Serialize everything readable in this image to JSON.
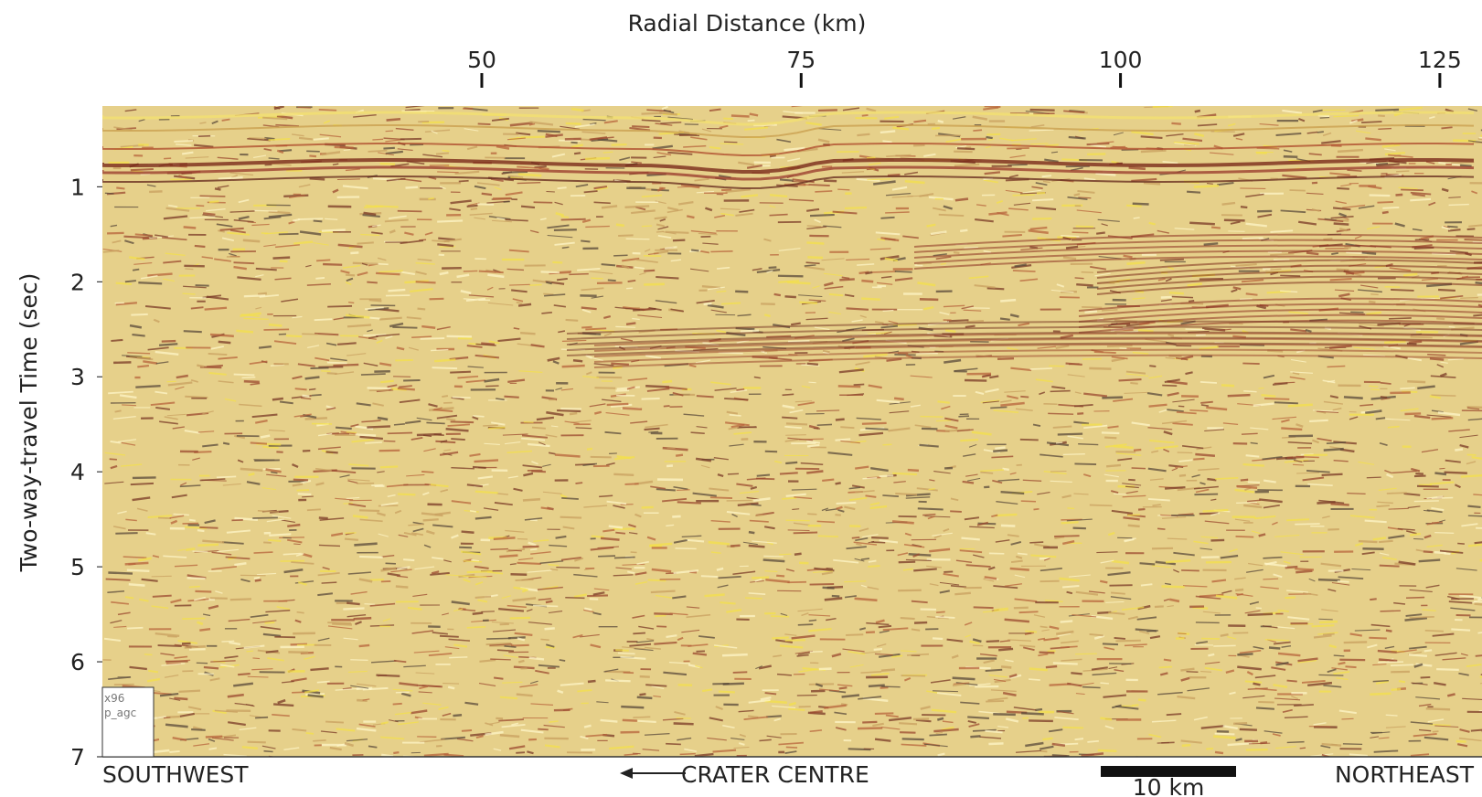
{
  "chart_data": {
    "type": "seismic",
    "xlabel": "Radial Distance (km)",
    "ylabel": "Two-way-travel Time (sec)",
    "xlim": [
      20.3,
      128.3
    ],
    "xticks": [
      50,
      75,
      100,
      125
    ],
    "ylim": [
      0.15,
      7
    ],
    "yticks": [
      1,
      2,
      3,
      4,
      5,
      6,
      7
    ],
    "annotations": {
      "left": "SOUTHWEST",
      "center": "CRATER CENTRE",
      "right": "NORTHEAST",
      "scale": "10 km",
      "box": [
        "x96",
        "p_agc"
      ]
    }
  }
}
